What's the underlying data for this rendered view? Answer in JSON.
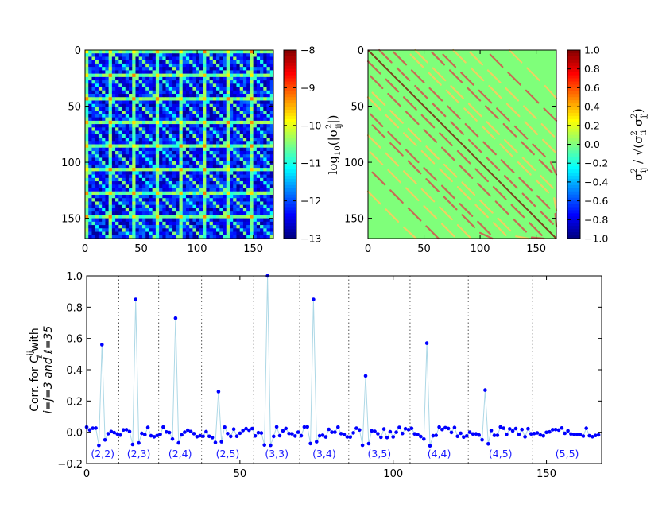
{
  "chart_data": [
    {
      "type": "heatmap",
      "panel": "top-left",
      "matrix_size": 168,
      "block_size": 21,
      "xlim": [
        0,
        168
      ],
      "ylim": [
        168,
        0
      ],
      "xticks": [
        "0",
        "50",
        "100",
        "150"
      ],
      "yticks": [
        "0",
        "50",
        "100",
        "150"
      ],
      "colorbar": {
        "range": [
          -13,
          -8
        ],
        "ticks": [
          "−8",
          "−9",
          "−10",
          "−11",
          "−12",
          "−13"
        ],
        "label": "log10(|σ²ij|)"
      },
      "colormap": "jet"
    },
    {
      "type": "heatmap",
      "panel": "top-right",
      "matrix_size": 168,
      "xlim": [
        0,
        168
      ],
      "ylim": [
        168,
        0
      ],
      "xticks": [
        "0",
        "50",
        "100",
        "150"
      ],
      "yticks": [
        "0",
        "50",
        "100",
        "150"
      ],
      "colorbar": {
        "range": [
          -1.0,
          1.0
        ],
        "ticks": [
          "1.0",
          "0.8",
          "0.6",
          "0.4",
          "0.2",
          "0.0",
          "−0.2",
          "−0.4",
          "−0.6",
          "−0.8",
          "−1.0"
        ],
        "label": "σ²ij / √(σ²ii σ²jj)"
      },
      "colormap": "jet"
    },
    {
      "type": "scatter",
      "panel": "bottom",
      "ylabel_line1": "Corr. for C",
      "ylabel_sup": "ij",
      "ylabel_sub": "ℓ",
      "ylabel_suffix": " with",
      "ylabel_line2": "i=j=3 and ℓ=35",
      "xlim": [
        0,
        168
      ],
      "ylim": [
        -0.2,
        1.0
      ],
      "xticks": [
        "0",
        "50",
        "100",
        "150"
      ],
      "yticks": [
        "1.0",
        "0.8",
        "0.6",
        "0.4",
        "0.2",
        "0.0",
        "−0.2"
      ],
      "segment_boundaries": [
        10.5,
        23.5,
        37.5,
        54.5,
        69.5,
        85.5,
        105.5,
        124.5,
        145.5
      ],
      "segment_labels": [
        "(2,2)",
        "(2,3)",
        "(2,4)",
        "(2,5)",
        "(3,3)",
        "(3,4)",
        "(3,5)",
        "(4,4)",
        "(4,5)",
        "(5,5)"
      ],
      "peaks": [
        {
          "x": 5,
          "y": 0.56
        },
        {
          "x": 16,
          "y": 0.85
        },
        {
          "x": 29,
          "y": 0.73
        },
        {
          "x": 43,
          "y": 0.26
        },
        {
          "x": 59,
          "y": 1.0
        },
        {
          "x": 74,
          "y": 0.85
        },
        {
          "x": 91,
          "y": 0.36
        },
        {
          "x": 111,
          "y": 0.57
        },
        {
          "x": 130,
          "y": 0.27
        }
      ],
      "background_amplitude": 0.05,
      "line_color": "#add8e6",
      "marker_color": "#0000ff"
    }
  ]
}
